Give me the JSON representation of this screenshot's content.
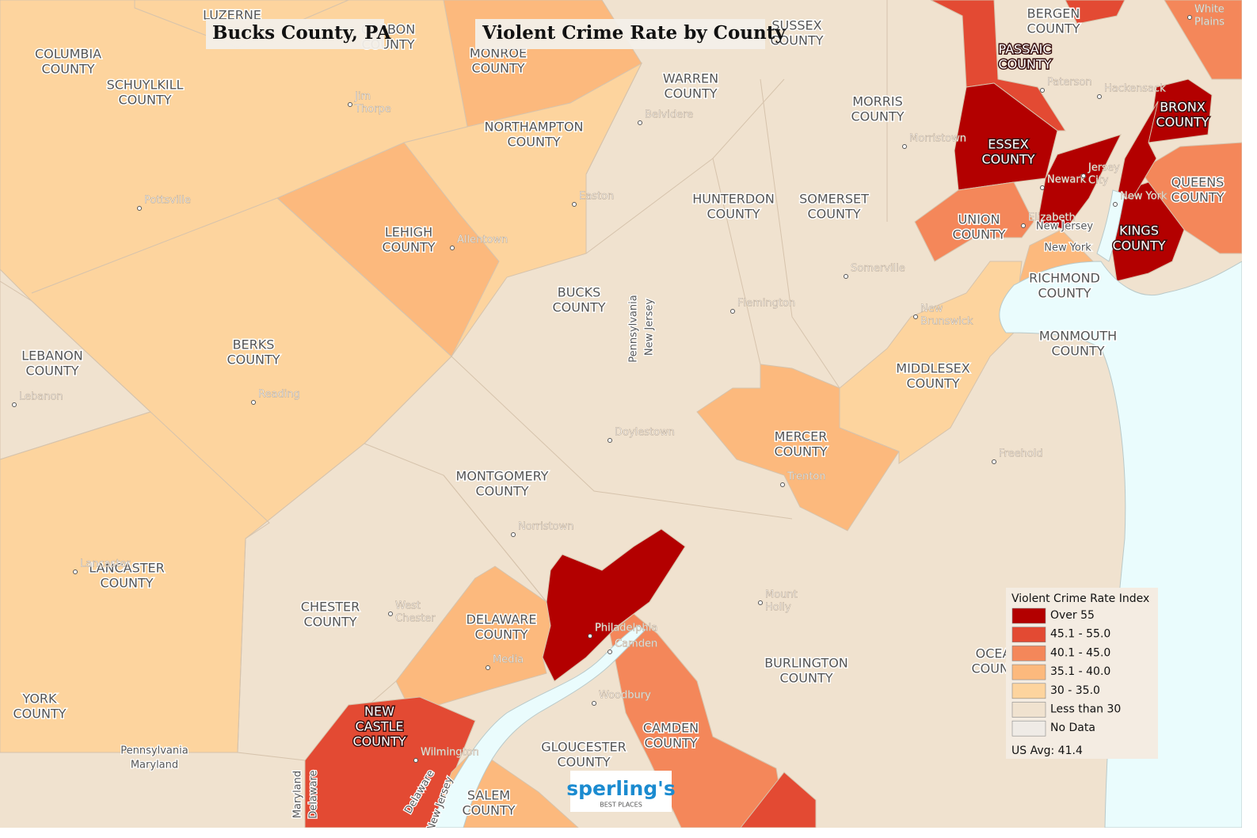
{
  "header": {
    "title": "Bucks County, PA",
    "subtitle": "Violent Crime Rate by County"
  },
  "counties": [
    {
      "name": [
        "LUZERNE"
      ]
    },
    {
      "name": [
        "CARBON",
        "COUNTY"
      ]
    },
    {
      "name": [
        "COLUMBIA",
        "COUNTY"
      ]
    },
    {
      "name": [
        "SCHUYLKILL",
        "COUNTY"
      ]
    },
    {
      "name": [
        "MONROE",
        "COUNTY"
      ],
      "color": "#fcb97d"
    },
    {
      "name": [
        "SUSSEX",
        "COUNTY"
      ]
    },
    {
      "name": [
        "BERGEN",
        "COUNTY"
      ]
    },
    {
      "name": [
        "PASSAIC",
        "COUNTY"
      ],
      "color": "#e34a33"
    },
    {
      "name": [
        "WARREN",
        "COUNTY"
      ]
    },
    {
      "name": [
        "MORRIS",
        "COUNTY"
      ]
    },
    {
      "name": [
        "NORTHAMPTON",
        "COUNTY"
      ],
      "color": "#fdd49e"
    },
    {
      "name": [
        "BRONX",
        "COUNTY"
      ],
      "color": "#b30000"
    },
    {
      "name": [
        "ESSEX",
        "COUNTY"
      ],
      "color": "#b30000"
    },
    {
      "name": [
        "QUEENS",
        "COUNTY"
      ],
      "color": "#f4875a"
    },
    {
      "name": [
        "HUNTERDON",
        "COUNTY"
      ]
    },
    {
      "name": [
        "SOMERSET",
        "COUNTY"
      ]
    },
    {
      "name": [
        "UNION",
        "COUNTY"
      ],
      "color": "#f4875a"
    },
    {
      "name": [
        "LEHIGH",
        "COUNTY"
      ],
      "color": "#fcb97d"
    },
    {
      "name": [
        "KINGS",
        "COUNTY"
      ],
      "color": "#b30000"
    },
    {
      "name": [
        "RICHMOND",
        "COUNTY"
      ],
      "color": "#fcb97d"
    },
    {
      "name": [
        "BUCKS",
        "COUNTY"
      ]
    },
    {
      "name": [
        "MONMOUTH",
        "COUNTY"
      ]
    },
    {
      "name": [
        "BERKS",
        "COUNTY"
      ],
      "color": "#fdd49e"
    },
    {
      "name": [
        "LEBANON",
        "COUNTY"
      ],
      "color": "#f0e2cf"
    },
    {
      "name": [
        "MIDDLESEX",
        "COUNTY"
      ],
      "color": "#fdd49e"
    },
    {
      "name": [
        "MERCER",
        "COUNTY"
      ],
      "color": "#fcb97d"
    },
    {
      "name": [
        "MONTGOMERY",
        "COUNTY"
      ]
    },
    {
      "name": [
        "LANCASTER",
        "COUNTY"
      ]
    },
    {
      "name": [
        "CHESTER",
        "COUNTY"
      ],
      "color": "#f0e2cf"
    },
    {
      "name": [
        "DELAWARE",
        "COUNTY"
      ],
      "color": "#fcb97d"
    },
    {
      "name": [
        "OCEAN",
        "COUNTY"
      ]
    },
    {
      "name": [
        "BURLINGTON",
        "COUNTY"
      ]
    },
    {
      "name": [
        "YORK",
        "COUNTY"
      ]
    },
    {
      "name": [
        "NEW",
        "CASTLE",
        "COUNTY"
      ],
      "color": "#e34a33"
    },
    {
      "name": [
        "CAMDEN",
        "COUNTY"
      ],
      "color": "#f4875a"
    },
    {
      "name": [
        "GLOUCESTER",
        "COUNTY"
      ]
    },
    {
      "name": [
        "SALEM",
        "COUNTY"
      ],
      "color": "#fcb97d"
    }
  ],
  "areas": [
    {
      "color": "#b30000"
    },
    {
      "color": "#b30000"
    },
    {
      "color": "#b30000"
    },
    {
      "color": "#f4875a"
    },
    {
      "color": "#e34a33"
    },
    {
      "color": "#e34a33"
    }
  ],
  "cities": [
    [
      "Jim",
      "Thorpe"
    ],
    [
      "Pottsville"
    ],
    [
      "Belvidere"
    ],
    [
      "Easton"
    ],
    [
      "Allentown"
    ],
    [
      "Morristown"
    ],
    [
      "Newark"
    ],
    [
      "Jersey",
      "City"
    ],
    [
      "New York"
    ],
    [
      "Paterson"
    ],
    [
      "Hackensack"
    ],
    [
      "White",
      "Plains"
    ],
    [
      "Elizabeth"
    ],
    [
      "Somerville"
    ],
    [
      "Flemington"
    ],
    [
      "New",
      "Brunswick"
    ],
    [
      "Reading"
    ],
    [
      "Lebanon"
    ],
    [
      "Doylestown"
    ],
    [
      "Trenton"
    ],
    [
      "Freehold"
    ],
    [
      "Norristown"
    ],
    [
      "Lancaster"
    ],
    [
      "West",
      "Chester"
    ],
    [
      "Philadelphia"
    ],
    [
      "Camden"
    ],
    [
      "Media"
    ],
    [
      "Mount",
      "Holly"
    ],
    [
      "Woodbury"
    ],
    [
      "Wilmington"
    ]
  ],
  "state_labels": [
    "Pennsylvania",
    "New Jersey",
    "Pennsylvania",
    "Maryland",
    "Maryland",
    "Delaware",
    "New Jersey",
    "New York",
    "Delaware",
    "New Jersey"
  ],
  "legend": {
    "title": "Violent Crime Rate Index",
    "items": [
      {
        "label": "Over 55",
        "color": "#b30000"
      },
      {
        "label": "45.1 - 55.0",
        "color": "#e34a33"
      },
      {
        "label": "40.1 - 45.0",
        "color": "#f4875a"
      },
      {
        "label": "35.1 - 40.0",
        "color": "#fcb97d"
      },
      {
        "label": "30 - 35.0",
        "color": "#fdd49e"
      },
      {
        "label": "Less than 30",
        "color": "#f0e2cf"
      },
      {
        "label": "No Data",
        "color": "#efebe6"
      }
    ],
    "note": "US Avg: 41.4"
  },
  "logo": {
    "name": "sperling's",
    "tagline": "BEST PLACES"
  }
}
